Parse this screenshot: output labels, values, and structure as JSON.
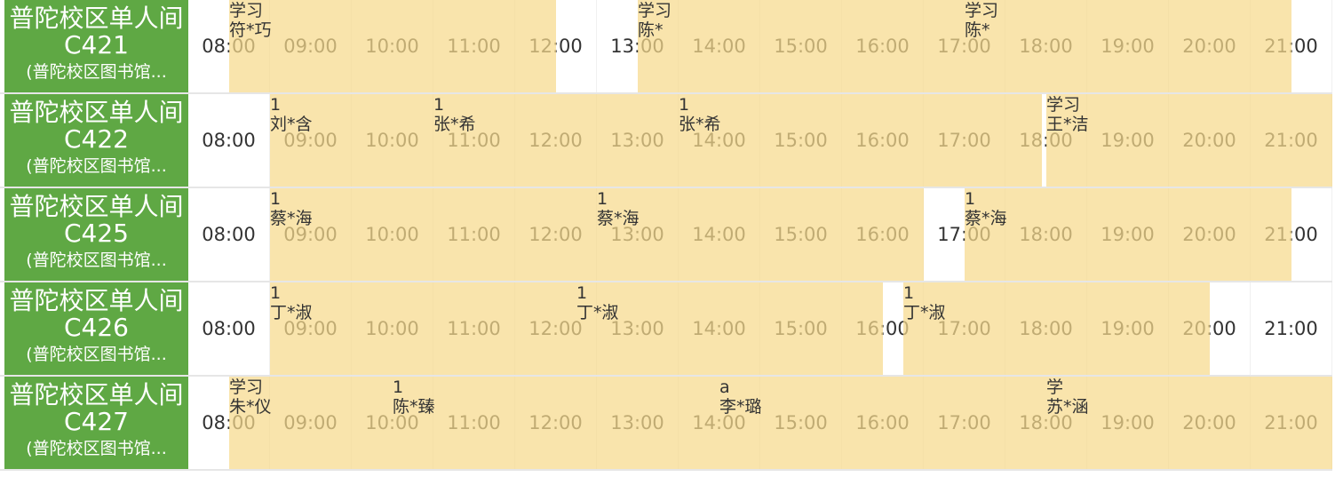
{
  "times": [
    "08:00",
    "09:00",
    "10:00",
    "11:00",
    "12:00",
    "13:00",
    "14:00",
    "15:00",
    "16:00",
    "17:00",
    "18:00",
    "19:00",
    "20:00",
    "21:00"
  ],
  "colors": {
    "room_bg": "#5fa844",
    "booking_bg": "#f7da8c"
  },
  "rooms": [
    {
      "name": "普陀校区单人间C421",
      "location": "(普陀校区图书馆...",
      "bookings": [
        {
          "start": 8.0,
          "end": 12.0,
          "title": "学习",
          "user": "符*巧"
        },
        {
          "start": 13.0,
          "end": 17.0,
          "title": "学习",
          "user": "陈*"
        },
        {
          "start": 17.0,
          "end": 21.0,
          "title": "学习",
          "user": "陈*"
        }
      ]
    },
    {
      "name": "普陀校区单人间C422",
      "location": "(普陀校区图书馆...",
      "bookings": [
        {
          "start": 8.5,
          "end": 10.5,
          "title": "1",
          "user": "刘*含"
        },
        {
          "start": 10.5,
          "end": 13.5,
          "title": "1",
          "user": "张*希"
        },
        {
          "start": 13.5,
          "end": 17.95,
          "title": "1",
          "user": "张*希"
        },
        {
          "start": 18.0,
          "end": 21.5,
          "title": "学习",
          "user": "王*洁"
        }
      ]
    },
    {
      "name": "普陀校区单人间C425",
      "location": "(普陀校区图书馆...",
      "bookings": [
        {
          "start": 8.5,
          "end": 12.5,
          "title": "1",
          "user": "蔡*海"
        },
        {
          "start": 12.5,
          "end": 16.5,
          "title": "1",
          "user": "蔡*海"
        },
        {
          "start": 17.0,
          "end": 21.0,
          "title": "1",
          "user": "蔡*海"
        }
      ]
    },
    {
      "name": "普陀校区单人间C426",
      "location": "(普陀校区图书馆...",
      "bookings": [
        {
          "start": 8.5,
          "end": 12.25,
          "title": "1",
          "user": "丁*淑"
        },
        {
          "start": 12.25,
          "end": 16.0,
          "title": "1",
          "user": "丁*淑"
        },
        {
          "start": 16.25,
          "end": 20.0,
          "title": "1",
          "user": "丁*淑"
        }
      ]
    },
    {
      "name": "普陀校区单人间C427",
      "location": "(普陀校区图书馆...",
      "bookings": [
        {
          "start": 8.0,
          "end": 10.0,
          "title": "学习",
          "user": "朱*仪"
        },
        {
          "start": 10.0,
          "end": 14.0,
          "title": "1",
          "user": "陈*臻"
        },
        {
          "start": 14.0,
          "end": 18.0,
          "title": "a",
          "user": "李*璐"
        },
        {
          "start": 18.0,
          "end": 21.5,
          "title": "学",
          "user": "苏*涵"
        }
      ]
    }
  ]
}
